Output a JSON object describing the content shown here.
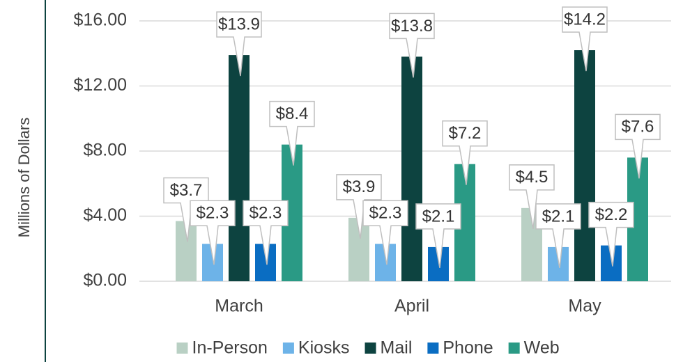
{
  "chart_data": {
    "type": "bar",
    "y_label": "Millions of Dollars",
    "categories": [
      "March",
      "April",
      "May"
    ],
    "series": [
      {
        "name": "In-Person",
        "color": "#b9d0c4",
        "values": [
          3.7,
          3.9,
          4.5
        ],
        "value_labels": [
          "$3.7",
          "$3.9",
          "$4.5"
        ]
      },
      {
        "name": "Kiosks",
        "color": "#6db3e8",
        "values": [
          2.3,
          2.3,
          2.1
        ],
        "value_labels": [
          "$2.3",
          "$2.3",
          "$2.1"
        ]
      },
      {
        "name": "Mail",
        "color": "#0d4340",
        "values": [
          13.9,
          13.8,
          14.2
        ],
        "value_labels": [
          "$13.9",
          "$13.8",
          "$14.2"
        ]
      },
      {
        "name": "Phone",
        "color": "#0a6dc2",
        "values": [
          2.3,
          2.1,
          2.2
        ],
        "value_labels": [
          "$2.3",
          "$2.1",
          "$2.2"
        ]
      },
      {
        "name": "Web",
        "color": "#2a9a85",
        "values": [
          8.4,
          7.2,
          7.6
        ],
        "value_labels": [
          "$8.4",
          "$7.2",
          "$7.6"
        ]
      }
    ],
    "ylim": [
      0,
      16
    ],
    "yticks": [
      {
        "value": 0,
        "label": "$0.00"
      },
      {
        "value": 4,
        "label": "$4.00"
      },
      {
        "value": 8,
        "label": "$8.00"
      },
      {
        "value": 12,
        "label": "$12.00"
      },
      {
        "value": 16,
        "label": "$16.00"
      }
    ],
    "grid": true,
    "legend": "bottom"
  }
}
